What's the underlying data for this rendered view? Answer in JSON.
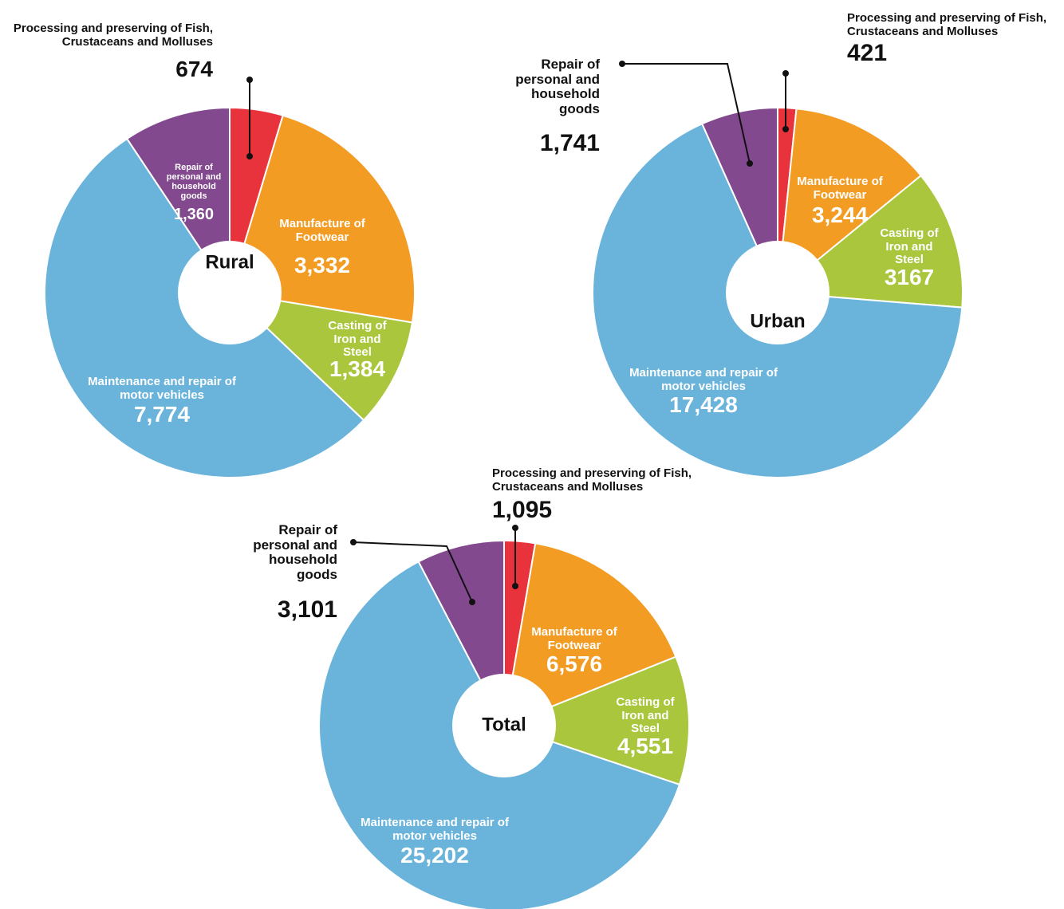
{
  "chart_data": [
    {
      "type": "pie",
      "title": "Rural",
      "categories": [
        "Processing and preserving of Fish, Crustaceans and Molluses",
        "Manufacture of Footwear",
        "Casting of Iron and Steel",
        "Maintenance and repair of motor vehicles",
        "Repair of personal and household goods"
      ],
      "values": [
        674,
        3332,
        1384,
        7774,
        1360
      ],
      "value_labels": [
        "674",
        "3,332",
        "1,384",
        "7,774",
        "1,360"
      ],
      "colors": [
        "#e8333c",
        "#f39c24",
        "#a9c63d",
        "#6ab4dc",
        "#83498f"
      ]
    },
    {
      "type": "pie",
      "title": "Urban",
      "categories": [
        "Processing and preserving of Fish, Crustaceans and Molluses",
        "Manufacture of Footwear",
        "Casting of Iron and Steel",
        "Maintenance and repair of motor vehicles",
        "Repair of personal and household goods"
      ],
      "values": [
        421,
        3244,
        3167,
        17428,
        1741
      ],
      "value_labels": [
        "421",
        "3,244",
        "3167",
        "17,428",
        "1,741"
      ],
      "colors": [
        "#e8333c",
        "#f39c24",
        "#a9c63d",
        "#6ab4dc",
        "#83498f"
      ]
    },
    {
      "type": "pie",
      "title": "Total",
      "categories": [
        "Processing and preserving of Fish, Crustaceans and Molluses",
        "Manufacture of Footwear",
        "Casting of Iron and Steel",
        "Maintenance and repair of motor vehicles",
        "Repair of personal and household goods"
      ],
      "values": [
        1095,
        6576,
        4551,
        25202,
        3101
      ],
      "value_labels": [
        "1,095",
        "6,576",
        "4,551",
        "25,202",
        "3,101"
      ],
      "colors": [
        "#e8333c",
        "#f39c24",
        "#a9c63d",
        "#6ab4dc",
        "#83498f"
      ]
    }
  ]
}
